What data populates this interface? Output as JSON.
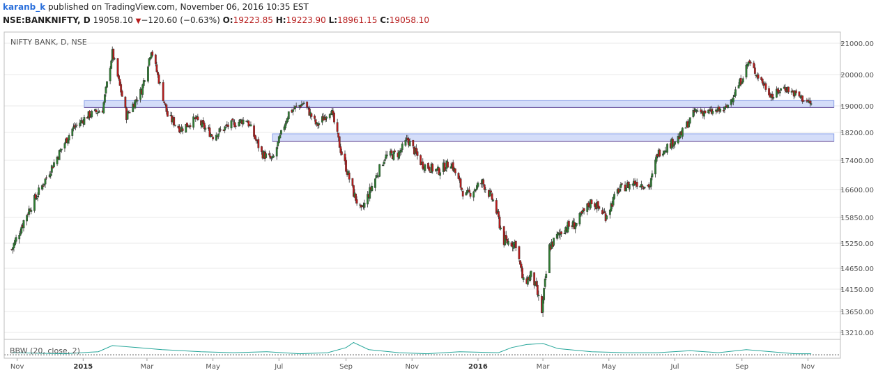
{
  "header": {
    "author": "karanb_k",
    "published_text": "published on TradingView.com, November 06, 2016 10:35 EST"
  },
  "quote": {
    "symbol": "NSE:BANKNIFTY, D",
    "last": "19058.10",
    "change": "−120.60 (−0.63%)",
    "open_label": "O:",
    "open": "19223.85",
    "high_label": "H:",
    "high": "19223.90",
    "low_label": "L:",
    "low": "18961.15",
    "close_label": "C:",
    "close": "19058.10"
  },
  "colors": {
    "up": "#2e7d32",
    "down": "#b71c1c",
    "zone_fill": "#ccd7f8",
    "zone_stroke": "#5c3c8a",
    "indicator": "#26a69a",
    "grid": "#e8e8e8"
  },
  "chart_data": {
    "type": "candlestick",
    "title": "NIFTY BANK, D, NSE",
    "y_ticks": [
      21000,
      20000,
      19000,
      18200,
      17400,
      16600,
      15850,
      15250,
      14650,
      14150,
      13650,
      13210
    ],
    "x_ticks": [
      {
        "label": "Nov",
        "bold": false
      },
      {
        "label": "2015",
        "bold": true
      },
      {
        "label": "Mar",
        "bold": false
      },
      {
        "label": "May",
        "bold": false
      },
      {
        "label": "Jul",
        "bold": false
      },
      {
        "label": "Sep",
        "bold": false
      },
      {
        "label": "Nov",
        "bold": false
      },
      {
        "label": "2016",
        "bold": true
      },
      {
        "label": "Mar",
        "bold": false
      },
      {
        "label": "May",
        "bold": false
      },
      {
        "label": "Jul",
        "bold": false
      },
      {
        "label": "Sep",
        "bold": false
      },
      {
        "label": "Nov",
        "bold": false
      }
    ],
    "x_months": [
      "2014-11",
      "2015-01",
      "2015-03",
      "2015-05",
      "2015-07",
      "2015-09",
      "2015-11",
      "2016-01",
      "2016-03",
      "2016-05",
      "2016-07",
      "2016-09",
      "2016-11"
    ],
    "close_path": [
      [
        "2014-10-27",
        15100
      ],
      [
        "2014-11-10",
        15950
      ],
      [
        "2014-11-24",
        16700
      ],
      [
        "2014-12-08",
        17500
      ],
      [
        "2014-12-22",
        18300
      ],
      [
        "2015-01-05",
        18700
      ],
      [
        "2015-01-19",
        18900
      ],
      [
        "2015-01-28",
        20700
      ],
      [
        "2015-02-10",
        18700
      ],
      [
        "2015-02-24",
        19500
      ],
      [
        "2015-03-05",
        20800
      ],
      [
        "2015-03-20",
        18700
      ],
      [
        "2015-04-01",
        18300
      ],
      [
        "2015-04-15",
        18600
      ],
      [
        "2015-05-01",
        18100
      ],
      [
        "2015-05-15",
        18400
      ],
      [
        "2015-06-01",
        18600
      ],
      [
        "2015-06-15",
        17600
      ],
      [
        "2015-06-25",
        17400
      ],
      [
        "2015-07-10",
        18800
      ],
      [
        "2015-07-24",
        19100
      ],
      [
        "2015-08-05",
        18400
      ],
      [
        "2015-08-18",
        18900
      ],
      [
        "2015-08-27",
        17700
      ],
      [
        "2015-09-08",
        16500
      ],
      [
        "2015-09-15",
        16000
      ],
      [
        "2015-09-28",
        16900
      ],
      [
        "2015-10-07",
        17500
      ],
      [
        "2015-10-20",
        17600
      ],
      [
        "2015-10-28",
        18000
      ],
      [
        "2015-11-10",
        17300
      ],
      [
        "2015-11-25",
        17100
      ],
      [
        "2015-12-07",
        17350
      ],
      [
        "2015-12-20",
        16400
      ],
      [
        "2016-01-05",
        16800
      ],
      [
        "2016-01-15",
        16300
      ],
      [
        "2016-01-25",
        15300
      ],
      [
        "2016-02-05",
        15250
      ],
      [
        "2016-02-12",
        14300
      ],
      [
        "2016-02-20",
        14500
      ],
      [
        "2016-02-29",
        13650
      ],
      [
        "2016-03-07",
        15150
      ],
      [
        "2016-03-20",
        15600
      ],
      [
        "2016-04-01",
        15700
      ],
      [
        "2016-04-15",
        16300
      ],
      [
        "2016-04-28",
        15900
      ],
      [
        "2016-05-10",
        16600
      ],
      [
        "2016-05-25",
        16800
      ],
      [
        "2016-06-08",
        16700
      ],
      [
        "2016-06-15",
        17600
      ],
      [
        "2016-06-24",
        17800
      ],
      [
        "2016-07-06",
        18100
      ],
      [
        "2016-07-20",
        18850
      ],
      [
        "2016-08-03",
        18800
      ],
      [
        "2016-08-17",
        18900
      ],
      [
        "2016-08-31",
        19800
      ],
      [
        "2016-09-07",
        20400
      ],
      [
        "2016-09-19",
        19800
      ],
      [
        "2016-09-29",
        19300
      ],
      [
        "2016-10-10",
        19600
      ],
      [
        "2016-10-24",
        19300
      ],
      [
        "2016-11-04",
        19058
      ]
    ],
    "zones": [
      {
        "from": "2015-01-02",
        "to": "2016-11-25",
        "low": 18950,
        "high": 19170
      },
      {
        "from": "2015-06-25",
        "to": "2016-11-25",
        "low": 17940,
        "high": 18160
      }
    ],
    "indicator": {
      "label": "BBW (20, close, 2)",
      "points": [
        [
          "2014-10-27",
          0.04
        ],
        [
          "2014-12-15",
          0.03
        ],
        [
          "2015-01-15",
          0.05
        ],
        [
          "2015-01-28",
          0.11
        ],
        [
          "2015-02-20",
          0.09
        ],
        [
          "2015-03-15",
          0.07
        ],
        [
          "2015-04-20",
          0.05
        ],
        [
          "2015-05-20",
          0.04
        ],
        [
          "2015-06-20",
          0.05
        ],
        [
          "2015-07-20",
          0.03
        ],
        [
          "2015-08-15",
          0.04
        ],
        [
          "2015-09-01",
          0.09
        ],
        [
          "2015-09-08",
          0.14
        ],
        [
          "2015-09-22",
          0.07
        ],
        [
          "2015-10-20",
          0.04
        ],
        [
          "2015-11-15",
          0.03
        ],
        [
          "2015-12-15",
          0.05
        ],
        [
          "2016-01-20",
          0.04
        ],
        [
          "2016-02-01",
          0.09
        ],
        [
          "2016-02-15",
          0.12
        ],
        [
          "2016-03-01",
          0.13
        ],
        [
          "2016-03-15",
          0.08
        ],
        [
          "2016-04-15",
          0.05
        ],
        [
          "2016-05-15",
          0.04
        ],
        [
          "2016-06-15",
          0.04
        ],
        [
          "2016-07-15",
          0.06
        ],
        [
          "2016-08-10",
          0.04
        ],
        [
          "2016-09-05",
          0.07
        ],
        [
          "2016-09-28",
          0.05
        ],
        [
          "2016-10-20",
          0.03
        ],
        [
          "2016-11-04",
          0.03
        ]
      ],
      "baseline": 0.02
    }
  }
}
